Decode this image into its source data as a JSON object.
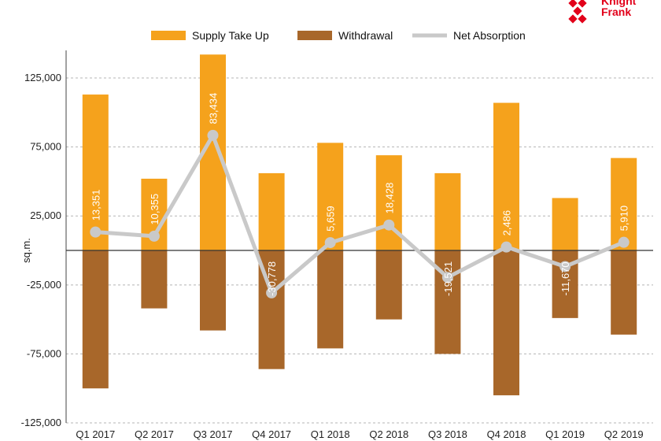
{
  "brand": {
    "line1": "Knight",
    "line2": "Frank",
    "color": "#e2001a"
  },
  "chart_data": {
    "type": "bar",
    "categories": [
      "Q1 2017",
      "Q2 2017",
      "Q3 2017",
      "Q4 2017",
      "Q1 2018",
      "Q2 2018",
      "Q3 2018",
      "Q4 2018",
      "Q1 2019",
      "Q2 2019"
    ],
    "ylabel": "sq.m.",
    "ylim": [
      -125000,
      145000
    ],
    "yticks": [
      125000,
      75000,
      25000,
      -25000,
      -75000,
      -125000
    ],
    "ytick_labels": [
      "125,000",
      "75,000",
      "25,000",
      "-25,000",
      "-75,000",
      "-125,000"
    ],
    "grid": true,
    "legend_position": "top",
    "series": [
      {
        "name": "Supply Take Up",
        "type": "bar",
        "color": "#f5a21c",
        "values": [
          113000,
          52000,
          142000,
          56000,
          78000,
          69000,
          56000,
          107000,
          38000,
          67000
        ]
      },
      {
        "name": "Withdrawal",
        "type": "bar",
        "color": "#a8672a",
        "values": [
          -100000,
          -42000,
          -58000,
          -86000,
          -71000,
          -50000,
          -75000,
          -105000,
          -49000,
          -61000
        ]
      },
      {
        "name": "Net Absorption",
        "type": "line",
        "color": "#c9c9c9",
        "values": [
          13351,
          10355,
          83434,
          -30778,
          5659,
          18428,
          -19521,
          2486,
          -11670,
          5910
        ],
        "labels": [
          "13,351",
          "10,355",
          "83,434",
          "-30,778",
          "5,659",
          "18,428",
          "-19,521",
          "2,486",
          "-11,670",
          "5,910"
        ]
      }
    ]
  }
}
